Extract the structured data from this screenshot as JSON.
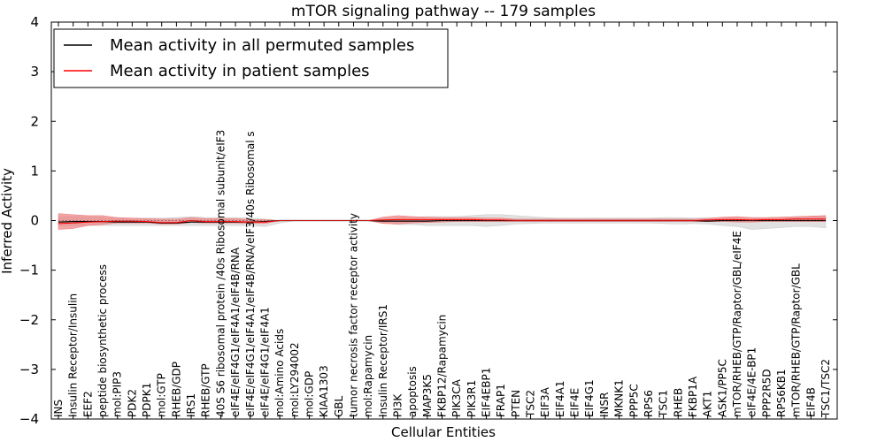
{
  "chart_data": {
    "type": "line",
    "title": "mTOR signaling pathway -- 179 samples",
    "xlabel": "Cellular Entities",
    "ylabel": "Inferred Activity",
    "ylim": [
      -4,
      4
    ],
    "yticks": [
      4,
      3,
      2,
      1,
      0,
      -1,
      -2,
      -3,
      -4
    ],
    "ytick_labels": [
      "4",
      "3",
      "2",
      "1",
      "0",
      "−1",
      "−2",
      "−3",
      "−4"
    ],
    "grid": false,
    "legend_position": "top-left",
    "categories": [
      "INS",
      "Insulin Receptor/Insulin",
      "EEF2",
      "peptide biosynthetic process",
      "mol:PIP3",
      "PDK2",
      "PDPK1",
      "mol:GTP",
      "RHEB/GDP",
      "IRS1",
      "RHEB/GTP",
      "40S S6 ribosomal protein /40s Ribosomal subunit/eIF3",
      "eIF4E/eIF4G1/eIF4A1/eIF4B/RNA",
      "eIF4E/eIF4G1/eIF4A1/eIF4B/RNA/eIF3/40s Ribosomal s",
      "eIF4E/eIF4G1/eIF4A1",
      "mol:Amino Acids",
      "mol:LY294002",
      "mol:GDP",
      "KIAA1303",
      "GBL",
      "tumor necrosis factor receptor activity",
      "mol:Rapamycin",
      "Insulin Receptor/IRS1",
      "PI3K",
      "apoptosis",
      "MAP3K5",
      "FKBP12/Rapamycin",
      "PIK3CA",
      "PIK3R1",
      "EIF4EBP1",
      "FRAP1",
      "PTEN",
      "TSC2",
      "EIF3A",
      "EIF4A1",
      "EIF4E",
      "EIF4G1",
      "INSR",
      "MKNK1",
      "PPP5C",
      "RPS6",
      "TSC1",
      "RHEB",
      "FKBP1A",
      "AKT1",
      "ASK1/PP5C",
      "mTOR/RHEB/GTP/Raptor/GBL/eIF4E",
      "eIF4E/4E-BP1",
      "PPP2R5D",
      "RPS6KB1",
      "mTOR/RHEB/GTP/Raptor/GBL",
      "EIF4B",
      "TSC1/TSC2"
    ],
    "series": [
      {
        "name": "Mean activity in all permuted samples",
        "color": "#000000",
        "band_color": "#c8c8c8",
        "values": [
          -0.03,
          -0.02,
          -0.02,
          -0.02,
          -0.03,
          -0.03,
          -0.03,
          -0.05,
          -0.05,
          -0.03,
          -0.03,
          -0.03,
          -0.03,
          -0.03,
          -0.02,
          0,
          0,
          0,
          0,
          0,
          0,
          0,
          -0.01,
          -0.01,
          -0.01,
          -0.01,
          0,
          0,
          0,
          0,
          0,
          0,
          0,
          0,
          0,
          0,
          0,
          0,
          0,
          0,
          0,
          0,
          0,
          0,
          -0.01,
          0,
          0,
          0,
          0,
          0,
          0,
          0,
          0
        ],
        "band_low": [
          -0.1,
          -0.1,
          -0.1,
          -0.1,
          -0.1,
          -0.1,
          -0.1,
          -0.1,
          -0.1,
          -0.1,
          -0.1,
          -0.1,
          -0.1,
          -0.1,
          -0.12,
          -0.05,
          0,
          0,
          0,
          0,
          0,
          0,
          -0.05,
          -0.08,
          -0.08,
          -0.1,
          -0.1,
          -0.1,
          -0.1,
          -0.12,
          -0.1,
          -0.07,
          -0.06,
          -0.05,
          -0.05,
          -0.05,
          -0.05,
          -0.05,
          -0.05,
          -0.05,
          -0.05,
          -0.06,
          -0.07,
          -0.06,
          -0.07,
          -0.1,
          -0.12,
          -0.18,
          -0.16,
          -0.14,
          -0.12,
          -0.12,
          -0.15
        ],
        "band_high": [
          0.08,
          0.08,
          0.08,
          0.06,
          0.05,
          0.05,
          0.05,
          0.05,
          0.06,
          0.08,
          0.06,
          0.06,
          0.06,
          0.05,
          0.03,
          0,
          0,
          0,
          0,
          0,
          0,
          0,
          0.05,
          0.06,
          0.07,
          0.08,
          0.08,
          0.08,
          0.1,
          0.12,
          0.12,
          0.1,
          0.08,
          0.06,
          0.05,
          0.05,
          0.05,
          0.05,
          0.05,
          0.05,
          0.05,
          0.06,
          0.06,
          0.05,
          0.06,
          0.06,
          0.06,
          0.06,
          0.06,
          0.07,
          0.08,
          0.08,
          0.1
        ]
      },
      {
        "name": "Mean activity in patient samples",
        "color": "#ff0000",
        "band_color": "#f08080",
        "values": [
          -0.06,
          -0.05,
          -0.03,
          -0.02,
          -0.01,
          -0.01,
          -0.02,
          -0.04,
          -0.04,
          0,
          -0.02,
          -0.02,
          -0.02,
          -0.03,
          -0.03,
          0,
          0,
          0,
          0,
          0,
          0,
          0,
          0.01,
          0.02,
          0.02,
          0.02,
          0.02,
          0.02,
          0.02,
          0.01,
          0.01,
          0,
          0,
          0,
          0,
          0,
          0,
          0,
          0,
          0,
          0,
          0,
          0,
          0,
          0.01,
          0.02,
          0.02,
          0.01,
          0.02,
          0.02,
          0.03,
          0.03,
          0.03
        ],
        "band_low": [
          -0.18,
          -0.16,
          -0.1,
          -0.08,
          -0.05,
          -0.05,
          -0.05,
          -0.07,
          -0.07,
          -0.04,
          -0.05,
          -0.05,
          -0.05,
          -0.06,
          -0.06,
          0,
          0,
          0,
          0,
          0,
          0,
          0,
          -0.06,
          -0.07,
          -0.05,
          -0.04,
          -0.03,
          -0.02,
          -0.02,
          -0.02,
          -0.02,
          -0.02,
          -0.02,
          -0.02,
          -0.02,
          -0.02,
          -0.02,
          -0.02,
          -0.02,
          -0.02,
          -0.02,
          -0.02,
          -0.02,
          -0.02,
          -0.02,
          -0.02,
          -0.03,
          -0.03,
          -0.02,
          -0.02,
          -0.02,
          -0.02,
          -0.02
        ],
        "band_high": [
          0.14,
          0.12,
          0.1,
          0.1,
          0.06,
          0.05,
          0.04,
          0.03,
          0.03,
          0.06,
          0.04,
          0.04,
          0.04,
          0.02,
          0.02,
          0,
          0,
          0,
          0,
          0,
          0,
          0,
          0.07,
          0.1,
          0.08,
          0.07,
          0.06,
          0.06,
          0.06,
          0.05,
          0.05,
          0.03,
          0.03,
          0.03,
          0.03,
          0.03,
          0.03,
          0.03,
          0.03,
          0.03,
          0.03,
          0.03,
          0.03,
          0.03,
          0.04,
          0.07,
          0.08,
          0.06,
          0.06,
          0.07,
          0.08,
          0.09,
          0.1
        ]
      }
    ]
  }
}
